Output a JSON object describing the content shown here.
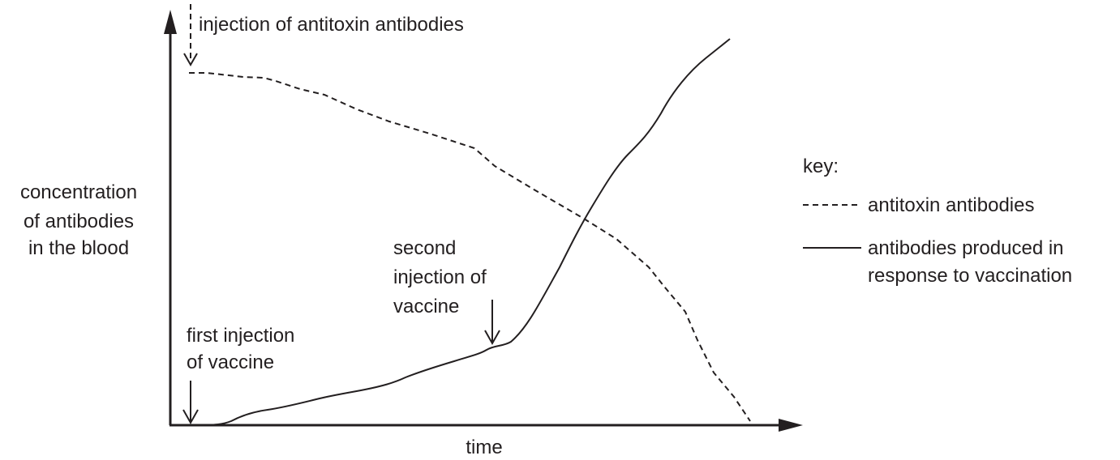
{
  "title": "injection of antitoxin antibodies",
  "y_axis_label": {
    "lines": [
      "concentration",
      "of antibodies",
      "in the blood"
    ]
  },
  "x_axis_label": "time",
  "annotations": {
    "first_injection": {
      "lines": [
        "first injection",
        "of vaccine"
      ]
    },
    "second_injection": {
      "lines": [
        "second",
        "injection of",
        "vaccine"
      ]
    }
  },
  "key": {
    "title": "key:",
    "items": [
      {
        "lines": [
          "antitoxin antibodies"
        ]
      },
      {
        "lines": [
          "antibodies produced in",
          "response to vaccination"
        ]
      }
    ]
  }
}
